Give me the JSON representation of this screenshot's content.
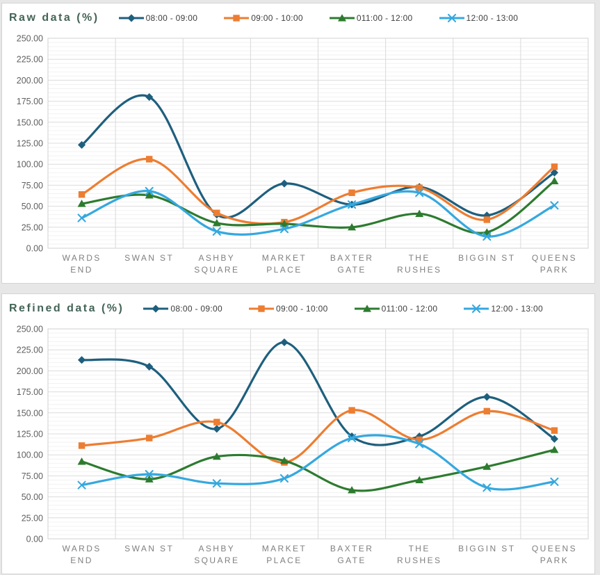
{
  "page": {
    "background": "#e7e7e7",
    "card_background": "#ffffff",
    "card_border": "#d4d4d4"
  },
  "styles": {
    "title_color": "#446457",
    "axis_label_color": "#5f5f5f",
    "category_label_color": "#7f7f7f",
    "legend_text_color": "#3d3d3d",
    "major_grid_color": "#dcdcdc",
    "minor_grid_color": "#f2f2f2",
    "vertical_grid_color": "#d9d9d9",
    "plot_border_color": "#d2d2d2",
    "axis_line_color": "#c4c4c4"
  },
  "chart_data": [
    {
      "type": "line",
      "title": "Raw data (%)",
      "xlabel": "",
      "ylabel": "",
      "ylim": [
        0,
        250
      ],
      "ytick_step": 25,
      "yminor_step": 5,
      "ytick_decimals": 2,
      "grid": true,
      "legend_position": "top",
      "line_smoothing": true,
      "categories": [
        "WARDS END",
        "SWAN ST",
        "ASHBY SQUARE",
        "MARKET PLACE",
        "BAXTER GATE",
        "THE RUSHES",
        "BIGGIN ST",
        "QUEENS PARK"
      ],
      "category_label_lines": [
        [
          "WARDS",
          "END"
        ],
        [
          "SWAN ST"
        ],
        [
          "ASHBY",
          "SQUARE"
        ],
        [
          "MARKET",
          "PLACE"
        ],
        [
          "BAXTER",
          "GATE"
        ],
        [
          "THE",
          "RUSHES"
        ],
        [
          "BIGGIN ST"
        ],
        [
          "QUEENS",
          "PARK"
        ]
      ],
      "series": [
        {
          "name": "08:00 - 09:00",
          "color": "#1e5f7e",
          "marker": "diamond",
          "values": [
            123,
            180,
            40,
            77,
            52,
            73,
            39,
            90
          ]
        },
        {
          "name": "09:00 - 10:00",
          "color": "#ed7d31",
          "marker": "square",
          "values": [
            64,
            106,
            42,
            31,
            66,
            72,
            34,
            97
          ]
        },
        {
          "name": "011:00 - 12:00",
          "color": "#2d7b2f",
          "marker": "triangle",
          "values": [
            53,
            63,
            30,
            29,
            25,
            41,
            19,
            80
          ]
        },
        {
          "name": "12:00 - 13:00",
          "color": "#35a8df",
          "marker": "x",
          "values": [
            36,
            68,
            20,
            23,
            52,
            66,
            14,
            51
          ]
        }
      ]
    },
    {
      "type": "line",
      "title": "Refined data (%)",
      "xlabel": "",
      "ylabel": "",
      "ylim": [
        0,
        250
      ],
      "ytick_step": 25,
      "yminor_step": 5,
      "ytick_decimals": 2,
      "grid": true,
      "legend_position": "top",
      "line_smoothing": true,
      "categories": [
        "WARDS END",
        "SWAN ST",
        "ASHBY SQUARE",
        "MARKET PLACE",
        "BAXTER GATE",
        "THE RUSHES",
        "BIGGIN ST",
        "QUEENS PARK"
      ],
      "category_label_lines": [
        [
          "WARDS",
          "END"
        ],
        [
          "SWAN ST"
        ],
        [
          "ASHBY",
          "SQUARE"
        ],
        [
          "MARKET",
          "PLACE"
        ],
        [
          "BAXTER",
          "GATE"
        ],
        [
          "THE",
          "RUSHES"
        ],
        [
          "BIGGIN ST"
        ],
        [
          "QUEENS",
          "PARK"
        ]
      ],
      "series": [
        {
          "name": "08:00 - 09:00",
          "color": "#1e5f7e",
          "marker": "diamond",
          "values": [
            213,
            205,
            131,
            234,
            122,
            122,
            169,
            119
          ]
        },
        {
          "name": "09:00 - 10:00",
          "color": "#ed7d31",
          "marker": "square",
          "values": [
            111,
            120,
            139,
            91,
            153,
            118,
            152,
            129
          ]
        },
        {
          "name": "011:00 - 12:00",
          "color": "#2d7b2f",
          "marker": "triangle",
          "values": [
            92,
            71,
            98,
            93,
            58,
            70,
            86,
            106
          ]
        },
        {
          "name": "12:00 - 13:00",
          "color": "#35a8df",
          "marker": "x",
          "values": [
            64,
            77,
            66,
            72,
            120,
            113,
            61,
            68
          ]
        }
      ]
    }
  ]
}
